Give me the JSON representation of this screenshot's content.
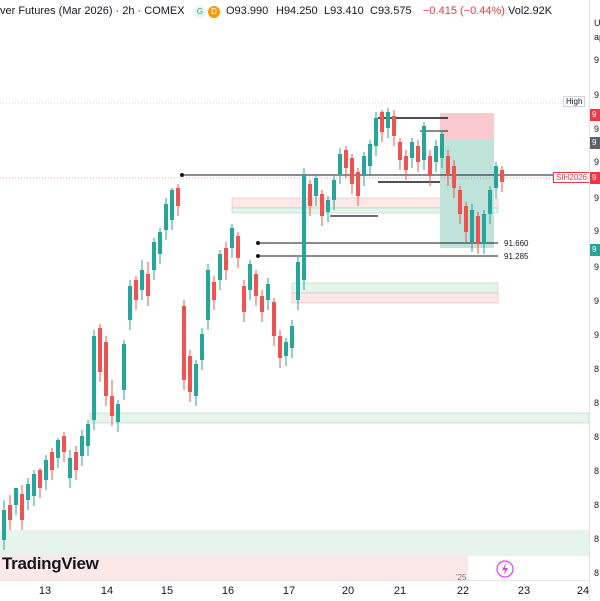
{
  "header": {
    "title": "ver Futures (Mar 2026) · 2h · COMEX",
    "badge_g": "G",
    "badge_d": "D",
    "open": "O93.990",
    "high": "H94.250",
    "low": "L93.410",
    "close": "C93.575",
    "change": "−0.415 (−0.44%)",
    "volume": "Vol2.92K"
  },
  "logo_text": "TradingView",
  "price_tags": {
    "high_label": "High",
    "symbol_label": "SIH2026",
    "level_1": "91.660",
    "level_2": "91.285"
  },
  "time_axis": [
    "13",
    "14",
    "15",
    "16",
    "17",
    "20",
    "21",
    "22",
    "23",
    "24"
  ],
  "axis_fragments": {
    "top_right_1": "U",
    "top_right_2": "ap",
    "labels": [
      "9",
      "9",
      "9",
      "9",
      "9",
      "9",
      "9",
      "9",
      "9",
      "8",
      "8",
      "8",
      "8",
      "8",
      "8",
      "8"
    ],
    "badge_red": "9",
    "badge_dark": "9",
    "badge_green": "9",
    "badge_sym": "9"
  },
  "bottom_fragment": "'25",
  "colors": {
    "up": "#26a69a",
    "down": "#ef5350",
    "text": "#131722",
    "axis_border": "#e0e3eb",
    "zone_green": "#e6f4ec",
    "zone_red": "#fde8e8",
    "long_target": "#bfe3da",
    "long_stop": "#f9c9cd"
  },
  "icons": {
    "lightning": "lightning-icon",
    "logo": "tradingview-logo-icon"
  },
  "chart_data": {
    "type": "candlestick",
    "timeframe": "2h",
    "symbol": "SIH2026",
    "x_ticks": [
      "13",
      "14",
      "15",
      "16",
      "17",
      "20",
      "21",
      "22",
      "23",
      "24"
    ],
    "y_visible_prices": [
      91.66,
      91.285
    ],
    "last_ohlc": {
      "open": 93.99,
      "high": 94.25,
      "low": 93.41,
      "close": 93.575,
      "change": -0.415,
      "change_pct": -0.44,
      "volume": "2.92K"
    },
    "candles": [
      [
        0,
        0,
        300
      ],
      [
        0,
        0,
        510
      ],
      [
        0,
        1,
        490
      ],
      [
        0,
        1,
        470
      ],
      [
        1,
        0,
        480
      ],
      [
        1,
        1,
        460
      ],
      [
        1,
        0,
        470
      ],
      [
        1,
        1,
        440
      ],
      [
        2,
        0,
        455
      ],
      [
        2,
        1,
        430
      ],
      [
        2,
        0,
        445
      ],
      [
        2,
        1,
        420
      ],
      [
        3,
        0,
        430
      ],
      [
        3,
        1,
        410
      ],
      [
        3,
        0,
        420
      ],
      [
        4,
        1,
        395
      ],
      [
        4,
        0,
        405
      ],
      [
        4,
        1,
        380
      ],
      [
        5,
        0,
        390
      ],
      [
        5,
        1,
        370
      ],
      [
        5,
        0,
        380
      ],
      [
        6,
        1,
        360
      ],
      [
        6,
        0,
        370
      ],
      [
        7,
        1,
        350
      ],
      [
        7,
        0,
        360
      ],
      [
        8,
        1,
        345
      ],
      [
        8,
        0,
        355
      ],
      [
        9,
        1,
        330
      ],
      [
        9,
        0,
        340
      ],
      [
        10,
        1,
        320
      ],
      [
        10,
        0,
        330
      ],
      [
        11,
        1,
        310
      ],
      [
        11,
        0,
        320
      ],
      [
        12,
        1,
        300
      ],
      [
        12,
        0,
        310
      ],
      [
        13,
        1,
        290
      ],
      [
        13,
        0,
        300
      ],
      [
        14,
        1,
        280
      ],
      [
        14,
        0,
        290
      ],
      [
        15,
        1,
        270
      ],
      [
        15,
        0,
        280
      ],
      [
        16,
        1,
        260
      ],
      [
        16,
        0,
        270
      ],
      [
        17,
        1,
        250
      ],
      [
        17,
        0,
        260
      ],
      [
        18,
        1,
        240
      ],
      [
        18,
        0,
        250
      ]
    ]
  }
}
